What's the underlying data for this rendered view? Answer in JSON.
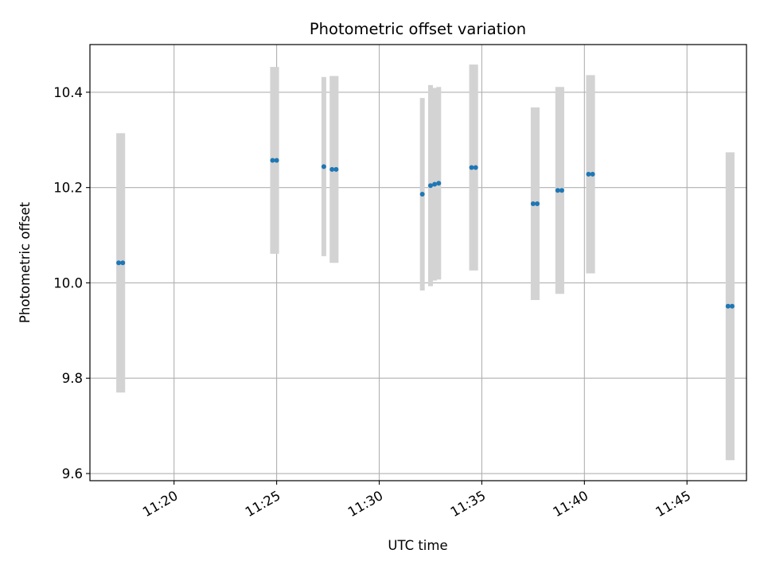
{
  "chart_data": {
    "type": "scatter",
    "title": "Photometric offset variation",
    "xlabel": "UTC time",
    "ylabel": "Photometric offset",
    "x_axis_kind": "time",
    "xlim": [
      "11:15:54",
      "11:47:54"
    ],
    "ylim": [
      9.585,
      10.5
    ],
    "x_ticks": [
      "11:20",
      "11:25",
      "11:30",
      "11:35",
      "11:40",
      "11:45"
    ],
    "y_ticks": [
      "9.6",
      "9.8",
      "10.0",
      "10.2",
      "10.4"
    ],
    "grid": true,
    "marker_color": "#1f77b4",
    "errorbar_color": "#d3d3d3",
    "series": [
      {
        "points": [
          {
            "time": "11:17:18",
            "value": 10.042,
            "error": 0.272
          },
          {
            "time": "11:17:30",
            "value": 10.042,
            "error": 0.272
          },
          {
            "time": "11:24:48",
            "value": 10.257,
            "error": 0.196
          },
          {
            "time": "11:25:00",
            "value": 10.257,
            "error": 0.196
          },
          {
            "time": "11:27:18",
            "value": 10.244,
            "error": 0.188
          },
          {
            "time": "11:27:42",
            "value": 10.238,
            "error": 0.196
          },
          {
            "time": "11:27:54",
            "value": 10.238,
            "error": 0.196
          },
          {
            "time": "11:32:06",
            "value": 10.186,
            "error": 0.202
          },
          {
            "time": "11:32:30",
            "value": 10.204,
            "error": 0.211
          },
          {
            "time": "11:32:42",
            "value": 10.207,
            "error": 0.202
          },
          {
            "time": "11:32:54",
            "value": 10.209,
            "error": 0.202
          },
          {
            "time": "11:34:30",
            "value": 10.242,
            "error": 0.216
          },
          {
            "time": "11:34:42",
            "value": 10.242,
            "error": 0.216
          },
          {
            "time": "11:37:30",
            "value": 10.166,
            "error": 0.202
          },
          {
            "time": "11:37:42",
            "value": 10.166,
            "error": 0.202
          },
          {
            "time": "11:38:42",
            "value": 10.194,
            "error": 0.217
          },
          {
            "time": "11:38:54",
            "value": 10.194,
            "error": 0.217
          },
          {
            "time": "11:40:12",
            "value": 10.228,
            "error": 0.208
          },
          {
            "time": "11:40:24",
            "value": 10.228,
            "error": 0.208
          },
          {
            "time": "11:47:00",
            "value": 9.951,
            "error": 0.323
          },
          {
            "time": "11:47:12",
            "value": 9.951,
            "error": 0.323
          }
        ]
      }
    ]
  }
}
